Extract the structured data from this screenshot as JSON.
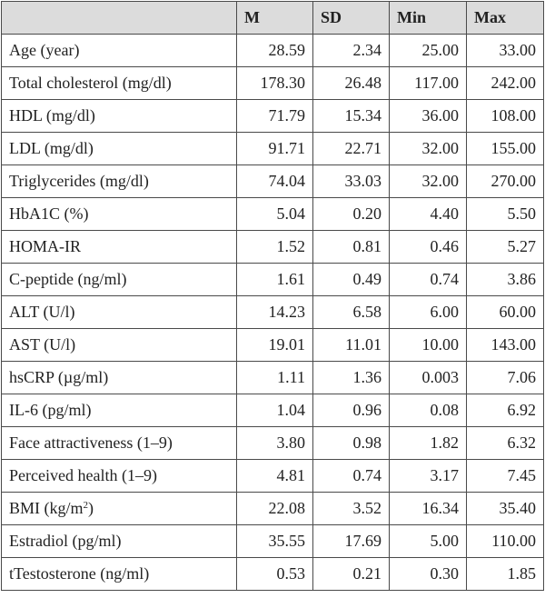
{
  "table": {
    "headers": [
      "",
      "M",
      "SD",
      "Min",
      "Max"
    ],
    "rows": [
      {
        "label": "Age (year)",
        "m": "28.59",
        "sd": "2.34",
        "min": "25.00",
        "max": "33.00"
      },
      {
        "label": "Total cholesterol (mg/dl)",
        "m": "178.30",
        "sd": "26.48",
        "min": "117.00",
        "max": "242.00"
      },
      {
        "label": "HDL (mg/dl)",
        "m": "71.79",
        "sd": "15.34",
        "min": "36.00",
        "max": "108.00"
      },
      {
        "label": "LDL (mg/dl)",
        "m": "91.71",
        "sd": "22.71",
        "min": "32.00",
        "max": "155.00"
      },
      {
        "label": "Triglycerides (mg/dl)",
        "m": "74.04",
        "sd": "33.03",
        "min": "32.00",
        "max": "270.00"
      },
      {
        "label": "HbA1C (%)",
        "m": "5.04",
        "sd": "0.20",
        "min": "4.40",
        "max": "5.50"
      },
      {
        "label": "HOMA-IR",
        "m": "1.52",
        "sd": "0.81",
        "min": "0.46",
        "max": "5.27"
      },
      {
        "label": "C-peptide (ng/ml)",
        "m": "1.61",
        "sd": "0.49",
        "min": "0.74",
        "max": "3.86"
      },
      {
        "label": "ALT (U/l)",
        "m": "14.23",
        "sd": "6.58",
        "min": "6.00",
        "max": "60.00"
      },
      {
        "label": "AST (U/l)",
        "m": "19.01",
        "sd": "11.01",
        "min": "10.00",
        "max": "143.00"
      },
      {
        "label": "hsCRP (µg/ml)",
        "m": "1.11",
        "sd": "1.36",
        "min": "0.003",
        "max": "7.06"
      },
      {
        "label": "IL-6 (pg/ml)",
        "m": "1.04",
        "sd": "0.96",
        "min": "0.08",
        "max": "6.92"
      },
      {
        "label": "Face attractiveness (1–9)",
        "m": "3.80",
        "sd": "0.98",
        "min": "1.82",
        "max": "6.32"
      },
      {
        "label": "Perceived health (1–9)",
        "m": "4.81",
        "sd": "0.74",
        "min": "3.17",
        "max": "7.45"
      },
      {
        "label": "BMI (kg/m",
        "label_sup": "2",
        "label_after": ")",
        "m": "22.08",
        "sd": "3.52",
        "min": "16.34",
        "max": "35.40"
      },
      {
        "label": "Estradiol (pg/ml)",
        "m": "35.55",
        "sd": "17.69",
        "min": "5.00",
        "max": "110.00"
      },
      {
        "label": "tTestosterone (ng/ml)",
        "m": "0.53",
        "sd": "0.21",
        "min": "0.30",
        "max": "1.85"
      }
    ]
  },
  "colors": {
    "header_bg": "#dcdcdc",
    "border": "#4a4a4a",
    "text": "#222222"
  }
}
